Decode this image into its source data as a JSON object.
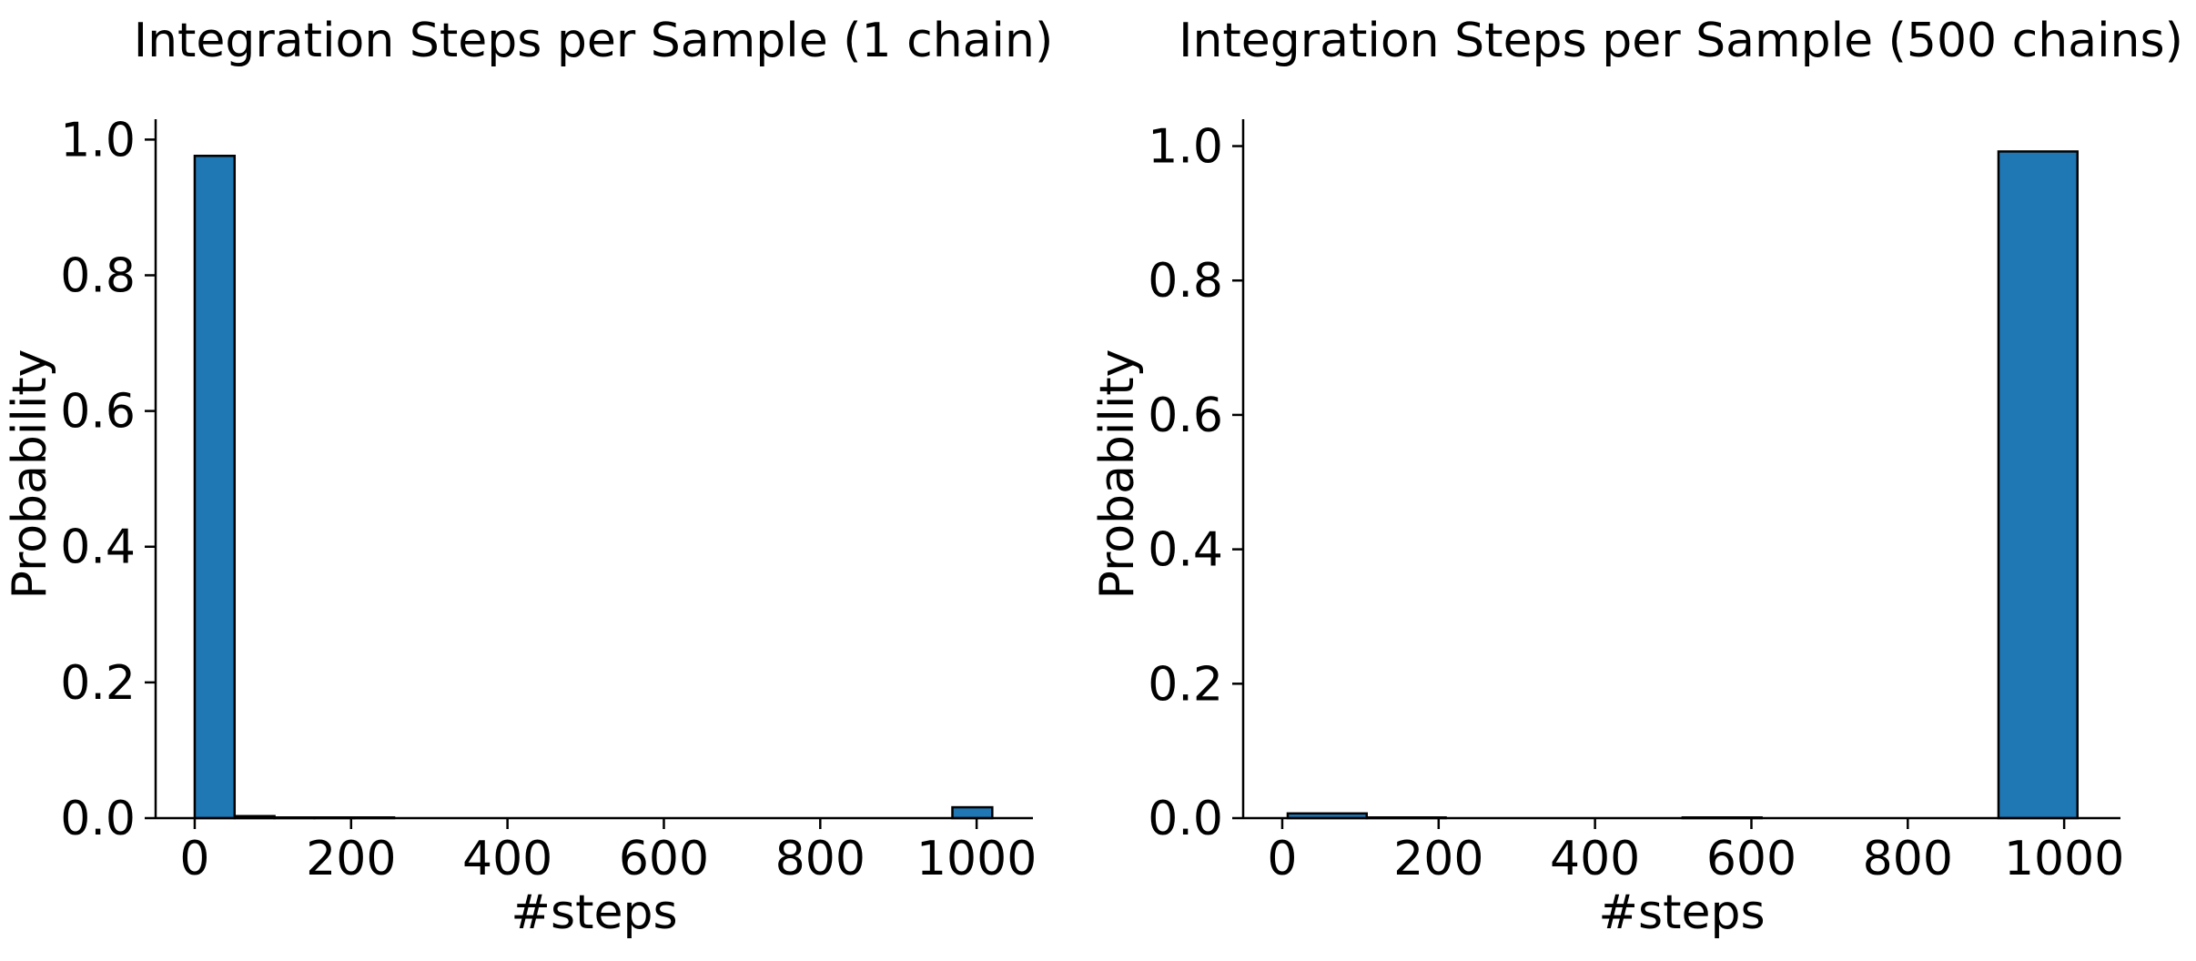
{
  "colors": {
    "bar_fill": "#1f77b4",
    "bar_edge": "#000000",
    "axis": "#000000",
    "background": "#ffffff"
  },
  "chart_data": [
    {
      "type": "bar",
      "title": "Integration Steps per Sample (1 chain)",
      "xlabel": "#steps",
      "ylabel": "Probability",
      "xlim": [
        -50,
        1072
      ],
      "ylim": [
        0,
        1.03
      ],
      "xticks": [
        0,
        200,
        400,
        600,
        800,
        1000
      ],
      "yticks": [
        0.0,
        0.2,
        0.4,
        0.6,
        0.8,
        1.0
      ],
      "xtick_labels": [
        "0",
        "200",
        "400",
        "600",
        "800",
        "1000"
      ],
      "ytick_labels": [
        "0.0",
        "0.2",
        "0.4",
        "0.6",
        "0.8",
        "1.0"
      ],
      "grid": false,
      "bins": [
        {
          "x0": 0,
          "x1": 51,
          "value": 0.976
        },
        {
          "x0": 51,
          "x1": 102,
          "value": 0.003
        },
        {
          "x0": 102,
          "x1": 153,
          "value": 0.001
        },
        {
          "x0": 153,
          "x1": 204,
          "value": 0.001
        },
        {
          "x0": 204,
          "x1": 255,
          "value": 0.001
        },
        {
          "x0": 255,
          "x1": 306,
          "value": 0.0
        },
        {
          "x0": 306,
          "x1": 357,
          "value": 0.0
        },
        {
          "x0": 357,
          "x1": 408,
          "value": 0.0
        },
        {
          "x0": 408,
          "x1": 459,
          "value": 0.0
        },
        {
          "x0": 459,
          "x1": 510,
          "value": 0.0
        },
        {
          "x0": 510,
          "x1": 561,
          "value": 0.0
        },
        {
          "x0": 561,
          "x1": 612,
          "value": 0.0
        },
        {
          "x0": 612,
          "x1": 663,
          "value": 0.0
        },
        {
          "x0": 663,
          "x1": 714,
          "value": 0.0
        },
        {
          "x0": 714,
          "x1": 765,
          "value": 0.0
        },
        {
          "x0": 765,
          "x1": 816,
          "value": 0.0
        },
        {
          "x0": 816,
          "x1": 867,
          "value": 0.0
        },
        {
          "x0": 867,
          "x1": 918,
          "value": 0.0
        },
        {
          "x0": 918,
          "x1": 969,
          "value": 0.0
        },
        {
          "x0": 969,
          "x1": 1020,
          "value": 0.016
        }
      ]
    },
    {
      "type": "bar",
      "title": "Integration Steps per Sample (500 chains)",
      "xlabel": "#steps",
      "ylabel": "Probability",
      "xlim": [
        -50,
        1072
      ],
      "ylim": [
        0,
        1.04
      ],
      "xticks": [
        0,
        200,
        400,
        600,
        800,
        1000
      ],
      "yticks": [
        0.0,
        0.2,
        0.4,
        0.6,
        0.8,
        1.0
      ],
      "xtick_labels": [
        "0",
        "200",
        "400",
        "600",
        "800",
        "1000"
      ],
      "ytick_labels": [
        "0.0",
        "0.2",
        "0.4",
        "0.6",
        "0.8",
        "1.0"
      ],
      "grid": false,
      "bins": [
        {
          "x0": 7,
          "x1": 108,
          "value": 0.007
        },
        {
          "x0": 108,
          "x1": 209,
          "value": 0.001
        },
        {
          "x0": 209,
          "x1": 310,
          "value": 0.0
        },
        {
          "x0": 310,
          "x1": 411,
          "value": 0.0
        },
        {
          "x0": 411,
          "x1": 512,
          "value": 0.0
        },
        {
          "x0": 512,
          "x1": 613,
          "value": 0.001
        },
        {
          "x0": 613,
          "x1": 714,
          "value": 0.0
        },
        {
          "x0": 714,
          "x1": 815,
          "value": 0.0
        },
        {
          "x0": 815,
          "x1": 916,
          "value": 0.0
        },
        {
          "x0": 916,
          "x1": 1017,
          "value": 0.992
        }
      ]
    }
  ]
}
